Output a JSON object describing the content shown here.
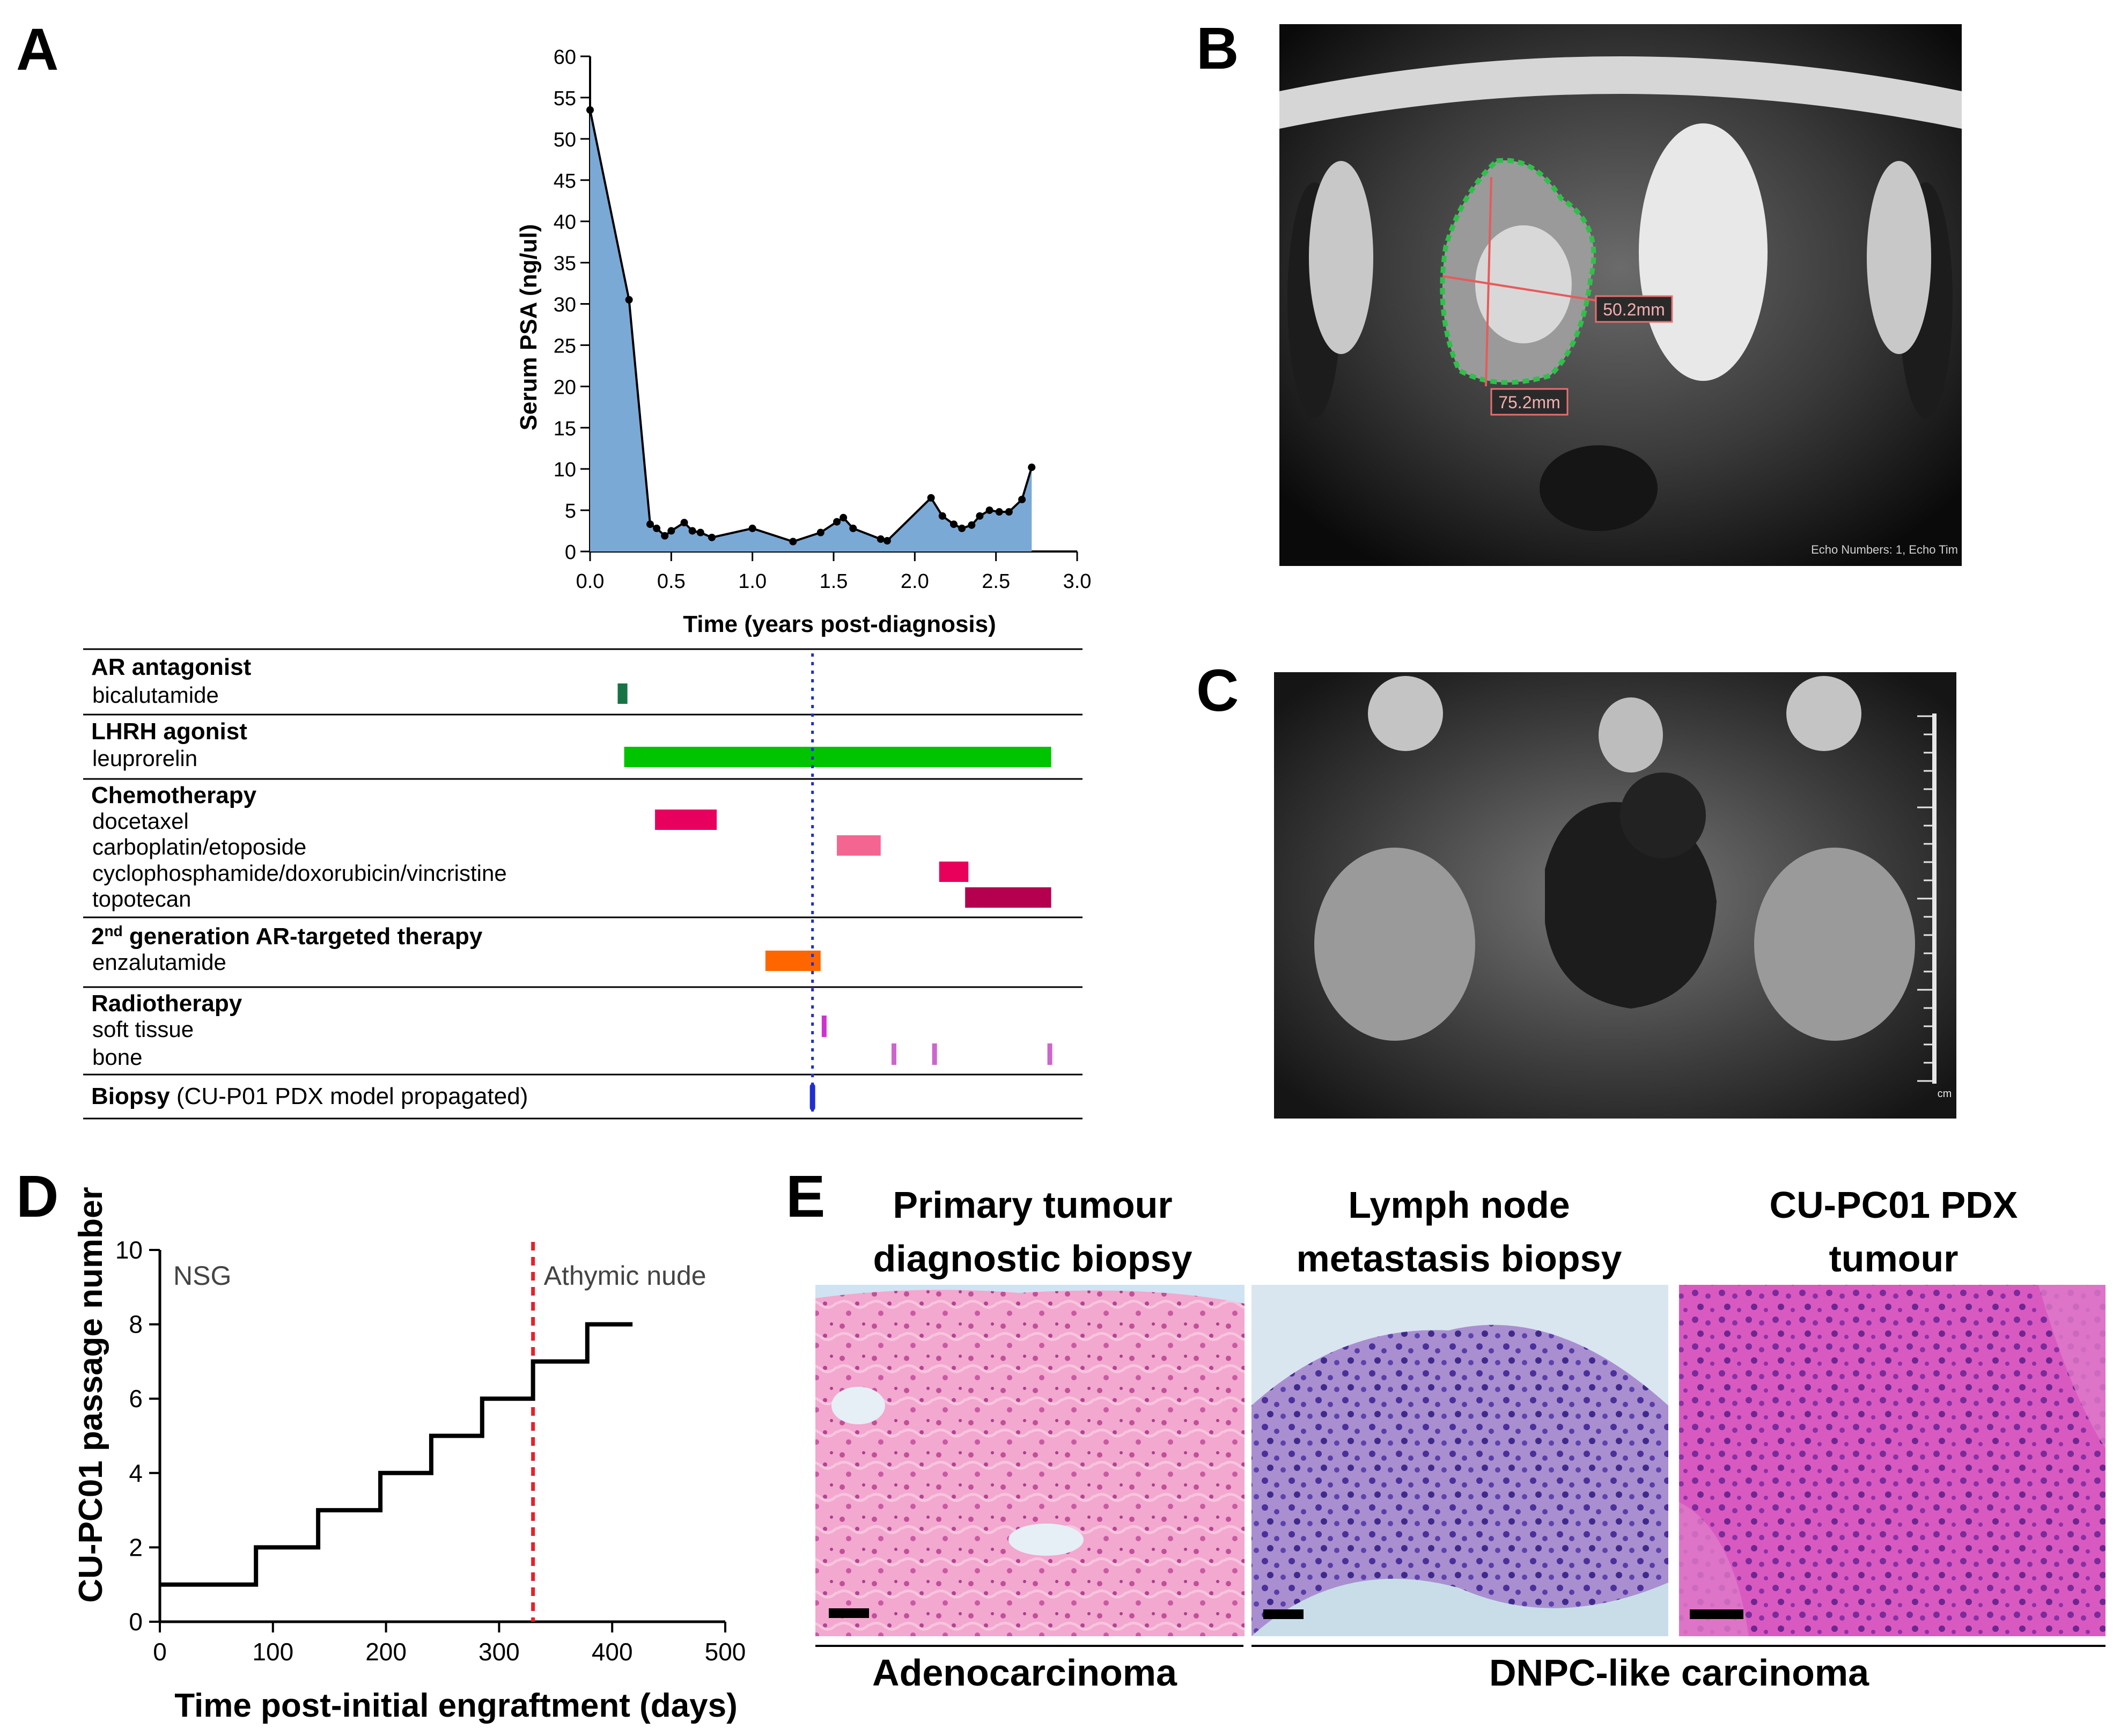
{
  "panels": {
    "A": {
      "letter": "A",
      "chart_data": {
        "type": "area",
        "xlabel": "Time (years post-diagnosis)",
        "ylabel": "Serum PSA (ng/ul)",
        "xlim": [
          0,
          3.0
        ],
        "ylim": [
          0,
          60
        ],
        "xticks": [
          "0.0",
          "0.5",
          "1.0",
          "1.5",
          "2.0",
          "2.5",
          "3.0"
        ],
        "yticks": [
          "0",
          "5",
          "10",
          "15",
          "20",
          "25",
          "30",
          "35",
          "40",
          "45",
          "50",
          "55",
          "60"
        ],
        "x": [
          0,
          0.24,
          0.37,
          0.41,
          0.46,
          0.5,
          0.58,
          0.63,
          0.68,
          0.75,
          1.0,
          1.25,
          1.42,
          1.52,
          1.56,
          1.62,
          1.79,
          1.83,
          2.1,
          2.17,
          2.24,
          2.29,
          2.35,
          2.4,
          2.46,
          2.52,
          2.58,
          2.66,
          2.72
        ],
        "y": [
          53.5,
          30.5,
          3.3,
          2.8,
          1.9,
          2.5,
          3.5,
          2.5,
          2.3,
          1.7,
          2.8,
          1.2,
          2.3,
          3.6,
          4.1,
          2.8,
          1.5,
          1.3,
          6.5,
          4.3,
          3.3,
          2.8,
          3.2,
          4.3,
          5.0,
          4.8,
          4.8,
          6.3,
          10.2
        ],
        "fill_color": "#7ba9d6",
        "line_color": "#000000"
      },
      "timeline": {
        "biopsy_time": 1.37,
        "sections": [
          {
            "header": "AR antagonist",
            "header_sup": "",
            "header_rest": "",
            "items": [
              {
                "label": "bicalutamide",
                "bars": [
                  {
                    "start": 0.17,
                    "end": 0.23,
                    "color": "#177245"
                  }
                ]
              }
            ]
          },
          {
            "header": "LHRH agonist",
            "header_sup": "",
            "header_rest": "",
            "items": [
              {
                "label": "leuprorelin",
                "bars": [
                  {
                    "start": 0.21,
                    "end": 2.84,
                    "color": "#00c400"
                  }
                ]
              }
            ]
          },
          {
            "header": "Chemotherapy",
            "header_sup": "",
            "header_rest": "",
            "items": [
              {
                "label": "docetaxel",
                "bars": [
                  {
                    "start": 0.4,
                    "end": 0.78,
                    "color": "#e8005f"
                  }
                ]
              },
              {
                "label": "carboplatin/etoposide",
                "bars": [
                  {
                    "start": 1.52,
                    "end": 1.79,
                    "color": "#f46592"
                  }
                ]
              },
              {
                "label": "cyclophosphamide/doxorubicin/vincristine",
                "bars": [
                  {
                    "start": 2.15,
                    "end": 2.33,
                    "color": "#e8005a"
                  }
                ]
              },
              {
                "label": "topotecan",
                "bars": [
                  {
                    "start": 2.31,
                    "end": 2.84,
                    "color": "#b4004e"
                  }
                ]
              }
            ]
          },
          {
            "header": "2",
            "header_sup": "nd",
            "header_rest": " generation AR-targeted therapy",
            "items": [
              {
                "label": "enzalutamide",
                "bars": [
                  {
                    "start": 1.08,
                    "end": 1.42,
                    "color": "#ff6600"
                  }
                ]
              }
            ]
          },
          {
            "header": "Radiotherapy",
            "header_sup": "",
            "header_rest": "",
            "items": [
              {
                "label": "soft tissue",
                "ticks": [
                  1.44
                ],
                "color": "#cc33cc"
              },
              {
                "label": "bone",
                "ticks": [
                  1.87,
                  2.12,
                  2.83
                ],
                "color": "#cc66cc"
              }
            ]
          }
        ],
        "biopsy_label_bold": "Biopsy",
        "biopsy_label_rest": " (CU-P01 PDX model propagated)"
      }
    },
    "B": {
      "letter": "B",
      "measure_1": "50.2mm",
      "measure_2": "75.2mm",
      "footer": "Echo Numbers: 1, Echo Tim"
    },
    "C": {
      "letter": "C",
      "scale_unit": "cm"
    },
    "D": {
      "letter": "D",
      "chart_data": {
        "type": "line",
        "xlabel": "Time post-initial engraftment (days)",
        "ylabel": "CU-PC01 passage number",
        "xlim": [
          0,
          500
        ],
        "ylim": [
          0,
          10
        ],
        "xticks": [
          "0",
          "100",
          "200",
          "300",
          "400",
          "500"
        ],
        "yticks": [
          "0",
          "2",
          "4",
          "6",
          "8",
          "10"
        ],
        "steps_x": [
          0,
          85,
          140,
          195,
          240,
          285,
          330,
          378,
          418
        ],
        "steps_y": [
          1,
          2,
          3,
          4,
          5,
          6,
          7,
          8,
          8
        ],
        "switch_day": 330,
        "label_left": "NSG",
        "label_right": "Athymic nude",
        "switch_color": "#e8202a"
      }
    },
    "E": {
      "letter": "E",
      "titles": [
        [
          "Primary tumour",
          "diagnostic biopsy"
        ],
        [
          "Lymph node",
          "metastasis biopsy"
        ],
        [
          "CU-PC01 PDX",
          "tumour"
        ]
      ],
      "label_left": "Adenocarcinoma",
      "label_right": "DNPC-like carcinoma"
    }
  }
}
